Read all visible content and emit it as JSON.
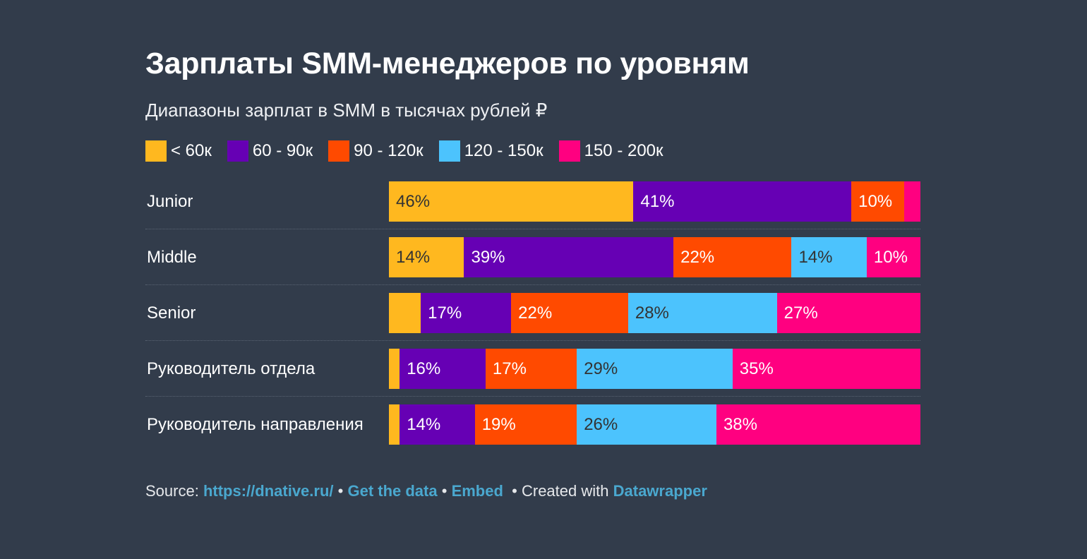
{
  "chart_data": {
    "type": "bar",
    "orientation": "horizontal",
    "stacked": true,
    "title": "Зарплаты SMM-менеджеров по уровням",
    "subtitle": "Диапазоны зарплат в SMM в тысячах рублей ₽",
    "categories": [
      "Junior",
      "Middle",
      "Senior",
      "Руководитель отдела",
      "Руководитель направления"
    ],
    "series": [
      {
        "name": "< 60к",
        "color": "#ffb81f",
        "text_color": "#333",
        "values": [
          46,
          14,
          6,
          2,
          2
        ],
        "labels": [
          "46%",
          "14%",
          "",
          "",
          ""
        ]
      },
      {
        "name": "60 - 90к",
        "color": "#6600b4",
        "text_color": "#fff",
        "values": [
          41,
          39,
          17,
          16,
          14
        ],
        "labels": [
          "41%",
          "39%",
          "17%",
          "16%",
          "14%"
        ]
      },
      {
        "name": "90 - 120к",
        "color": "#ff4a00",
        "text_color": "#fff",
        "values": [
          10,
          22,
          22,
          17,
          19
        ],
        "labels": [
          "10%",
          "22%",
          "22%",
          "17%",
          "19%"
        ]
      },
      {
        "name": "120 - 150к",
        "color": "#4cc3fd",
        "text_color": "#333",
        "values": [
          0,
          14,
          28,
          29,
          26
        ],
        "labels": [
          "",
          "14%",
          "28%",
          "29%",
          "26%"
        ]
      },
      {
        "name": "150 - 200к",
        "color": "#ff0080",
        "text_color": "#fff",
        "values": [
          3,
          10,
          27,
          35,
          38
        ],
        "labels": [
          "",
          "10%",
          "27%",
          "35%",
          "38%"
        ]
      }
    ],
    "unit": "%",
    "legend_position": "top-left"
  },
  "footer": {
    "source_label": "Source:",
    "source_link": "https://dnative.ru/",
    "get_data": "Get the data",
    "embed": "Embed",
    "created_with": "Created with",
    "datawrapper": "Datawrapper",
    "bullet": "•"
  }
}
